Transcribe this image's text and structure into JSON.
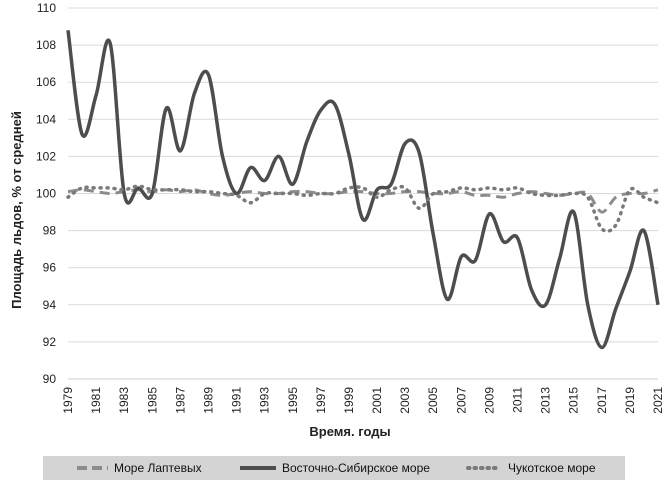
{
  "chart_data": {
    "type": "line",
    "xlabel": "Время. годы",
    "ylabel": "Площадь льдов, % от средней",
    "ylim": [
      90,
      110
    ],
    "yticks": [
      "90",
      "92",
      "94",
      "96",
      "98",
      "100",
      "102",
      "104",
      "106",
      "108",
      "110"
    ],
    "xlim": [
      1979,
      2021
    ],
    "xticks": [
      "1979",
      "1981",
      "1983",
      "1985",
      "1987",
      "1989",
      "1991",
      "1993",
      "1995",
      "1997",
      "1999",
      "2001",
      "2003",
      "2005",
      "2007",
      "2009",
      "2011",
      "2013",
      "2015",
      "2017",
      "2019",
      "2021"
    ],
    "grid": "horizontal",
    "legend": "bottom",
    "x": [
      1979,
      1980,
      1981,
      1982,
      1983,
      1984,
      1985,
      1986,
      1987,
      1988,
      1989,
      1990,
      1991,
      1992,
      1993,
      1994,
      1995,
      1996,
      1997,
      1998,
      1999,
      2000,
      2001,
      2002,
      2003,
      2004,
      2005,
      2006,
      2007,
      2008,
      2009,
      2010,
      2011,
      2012,
      2013,
      2014,
      2015,
      2016,
      2017,
      2018,
      2019,
      2020,
      2021
    ],
    "series": [
      {
        "name": "Море Лаптевых",
        "color": "#8c8c8c",
        "style": "dashed",
        "values": [
          100.1,
          100.2,
          100.1,
          100.0,
          100.1,
          100.2,
          100.1,
          100.2,
          100.1,
          100.2,
          100.0,
          99.9,
          100.0,
          100.1,
          100.0,
          100.0,
          100.1,
          100.1,
          100.0,
          100.0,
          100.1,
          100.1,
          100.0,
          100.0,
          100.1,
          100.1,
          100.0,
          100.0,
          100.1,
          99.9,
          99.9,
          99.8,
          100.0,
          100.1,
          100.0,
          99.9,
          100.0,
          100.0,
          99.0,
          99.8,
          100.0,
          100.0,
          100.2
        ]
      },
      {
        "name": "Восточно-Сибирское море",
        "color": "#4d4d4d",
        "style": "solid",
        "values": [
          108.8,
          103.2,
          105.3,
          108.1,
          100.0,
          100.3,
          100.0,
          104.6,
          102.3,
          105.4,
          106.4,
          102.0,
          100.0,
          101.4,
          100.7,
          102.0,
          100.5,
          102.8,
          104.5,
          104.8,
          102.1,
          98.6,
          100.2,
          100.5,
          102.7,
          102.2,
          97.8,
          94.3,
          96.6,
          96.4,
          98.9,
          97.4,
          97.6,
          94.8,
          94.0,
          96.5,
          99.0,
          94.0,
          91.7,
          93.8,
          95.8,
          98.0,
          94.0
        ]
      },
      {
        "name": "Чукотское море",
        "color": "#7a7a7a",
        "style": "dotted",
        "values": [
          99.8,
          100.3,
          100.3,
          100.3,
          100.2,
          100.4,
          100.2,
          100.2,
          100.2,
          100.1,
          100.1,
          100.0,
          99.9,
          99.5,
          100.0,
          100.0,
          100.0,
          99.9,
          100.0,
          100.0,
          100.3,
          100.3,
          99.8,
          100.2,
          100.3,
          99.2,
          100.0,
          100.1,
          100.3,
          100.2,
          100.3,
          100.2,
          100.3,
          100.0,
          99.9,
          99.9,
          100.0,
          99.8,
          98.1,
          98.3,
          100.2,
          99.8,
          99.5
        ]
      }
    ]
  }
}
